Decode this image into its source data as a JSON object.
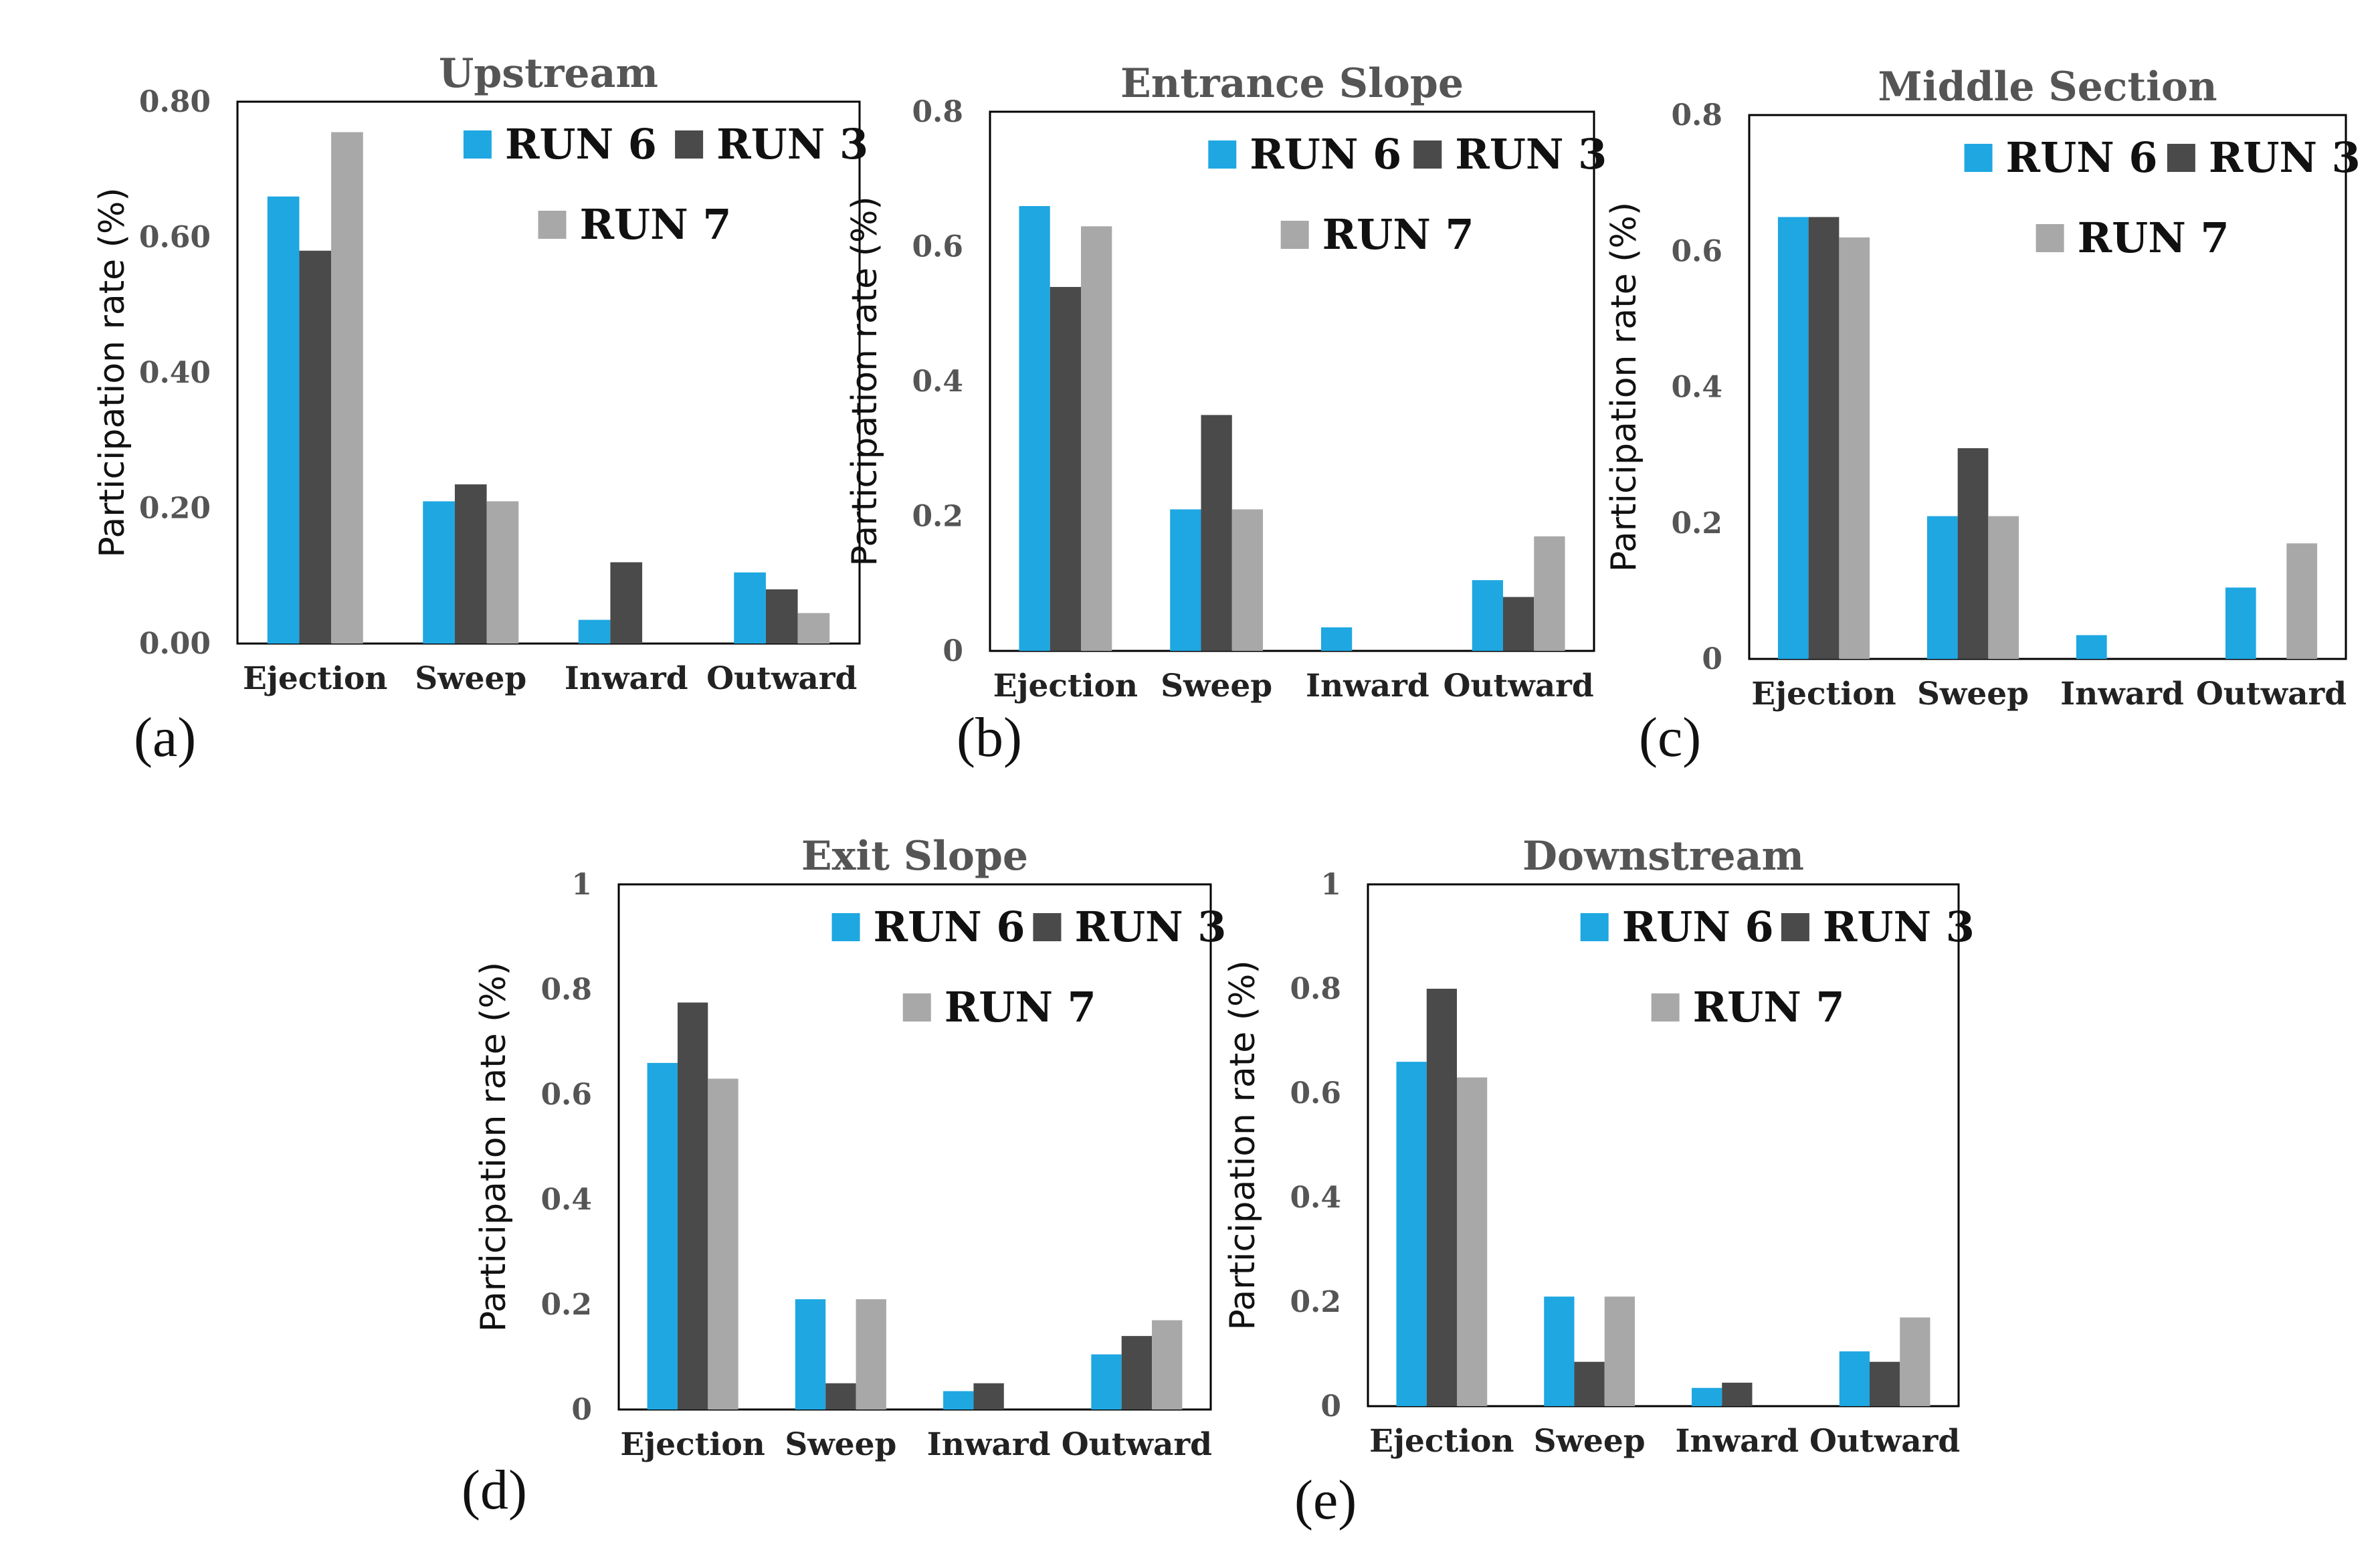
{
  "colors": {
    "RUN 6": "#1ea7e1",
    "RUN 3": "#4a4a4a",
    "RUN 7": "#a8a8a8"
  },
  "chart_data": [
    {
      "type": "bar",
      "panel": "(a)",
      "title": "Upstream",
      "ylabel": "Participation rate (%)",
      "xlabel": "",
      "categories": [
        "Ejection",
        "Sweep",
        "Inward",
        "Outward"
      ],
      "ylim": [
        0,
        0.8
      ],
      "yticks": [
        "0.00",
        "0.20",
        "0.40",
        "0.60",
        "0.80"
      ],
      "legend": "top-right",
      "series": [
        {
          "name": "RUN 6",
          "values": [
            0.66,
            0.21,
            0.035,
            0.105
          ]
        },
        {
          "name": "RUN 3",
          "values": [
            0.58,
            0.235,
            0.12,
            0.08
          ]
        },
        {
          "name": "RUN 7",
          "values": [
            0.755,
            0.21,
            0,
            0.045
          ]
        }
      ]
    },
    {
      "type": "bar",
      "panel": "(b)",
      "title": "Entrance Slope",
      "ylabel": "Participation rate (%)",
      "xlabel": "",
      "categories": [
        "Ejection",
        "Sweep",
        "Inward",
        "Outward"
      ],
      "ylim": [
        0,
        0.8
      ],
      "yticks": [
        "0",
        "0.2",
        "0.4",
        "0.6",
        "0.8"
      ],
      "legend": "top-right",
      "series": [
        {
          "name": "RUN 6",
          "values": [
            0.66,
            0.21,
            0.035,
            0.105
          ]
        },
        {
          "name": "RUN 3",
          "values": [
            0.54,
            0.35,
            0,
            0.08
          ]
        },
        {
          "name": "RUN 7",
          "values": [
            0.63,
            0.21,
            0,
            0.17
          ]
        }
      ]
    },
    {
      "type": "bar",
      "panel": "(c)",
      "title": "Middle Section",
      "ylabel": "Participation rate (%)",
      "xlabel": "",
      "categories": [
        "Ejection",
        "Sweep",
        "Inward",
        "Outward"
      ],
      "ylim": [
        0,
        0.8
      ],
      "yticks": [
        "0",
        "0.2",
        "0.4",
        "0.6",
        "0.8"
      ],
      "legend": "top-right",
      "series": [
        {
          "name": "RUN 6",
          "values": [
            0.65,
            0.21,
            0.035,
            0.105
          ]
        },
        {
          "name": "RUN 3",
          "values": [
            0.65,
            0.31,
            0,
            0
          ]
        },
        {
          "name": "RUN 7",
          "values": [
            0.62,
            0.21,
            0,
            0.17
          ]
        }
      ]
    },
    {
      "type": "bar",
      "panel": "(d)",
      "title": "Exit Slope",
      "ylabel": "Participation rate (%)",
      "xlabel": "",
      "categories": [
        "Ejection",
        "Sweep",
        "Inward",
        "Outward"
      ],
      "ylim": [
        0,
        1
      ],
      "yticks": [
        "0",
        "0.2",
        "0.4",
        "0.6",
        "0.8",
        "1"
      ],
      "legend": "top-right",
      "series": [
        {
          "name": "RUN 6",
          "values": [
            0.66,
            0.21,
            0.035,
            0.105
          ]
        },
        {
          "name": "RUN 3",
          "values": [
            0.775,
            0.05,
            0.05,
            0.14
          ]
        },
        {
          "name": "RUN 7",
          "values": [
            0.63,
            0.21,
            0,
            0.17
          ]
        }
      ]
    },
    {
      "type": "bar",
      "panel": "(e)",
      "title": "Downstream",
      "ylabel": "Participation rate (%)",
      "xlabel": "",
      "categories": [
        "Ejection",
        "Sweep",
        "Inward",
        "Outward"
      ],
      "ylim": [
        0,
        1
      ],
      "yticks": [
        "0",
        "0.2",
        "0.4",
        "0.6",
        "0.8",
        "1"
      ],
      "legend": "top-right",
      "series": [
        {
          "name": "RUN 6",
          "values": [
            0.66,
            0.21,
            0.035,
            0.105
          ]
        },
        {
          "name": "RUN 3",
          "values": [
            0.8,
            0.085,
            0.045,
            0.085
          ]
        },
        {
          "name": "RUN 7",
          "values": [
            0.63,
            0.21,
            0,
            0.17
          ]
        }
      ]
    }
  ]
}
